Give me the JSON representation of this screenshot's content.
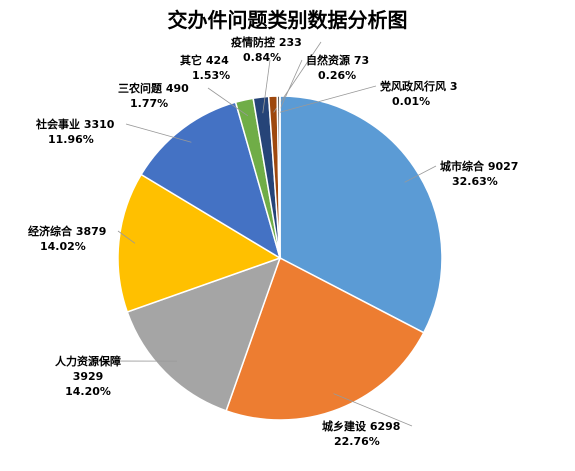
{
  "chart_data": {
    "type": "pie",
    "title": "交办件问题类别数据分析图",
    "slices": [
      {
        "name": "城市综合",
        "value": 9027,
        "percent": "32.63%",
        "color": "#5b9bd5"
      },
      {
        "name": "城乡建设",
        "value": 6298,
        "percent": "22.76%",
        "color": "#ed7d31"
      },
      {
        "name": "人力资源保障",
        "value": 3929,
        "percent": "14.20%",
        "color": "#a5a5a5"
      },
      {
        "name": "经济综合",
        "value": 3879,
        "percent": "14.02%",
        "color": "#ffc000"
      },
      {
        "name": "社会事业",
        "value": 3310,
        "percent": "11.96%",
        "color": "#4472c4"
      },
      {
        "name": "三农问题",
        "value": 490,
        "percent": "1.77%",
        "color": "#70ad47"
      },
      {
        "name": "其它",
        "value": 424,
        "percent": "1.53%",
        "color": "#264478"
      },
      {
        "name": "疫情防控",
        "value": 233,
        "percent": "0.84%",
        "color": "#9e480e"
      },
      {
        "name": "自然资源",
        "value": 73,
        "percent": "0.26%",
        "color": "#636363"
      },
      {
        "name": "党风政风行风",
        "value": 3,
        "percent": "0.01%",
        "color": "#997300"
      }
    ]
  }
}
